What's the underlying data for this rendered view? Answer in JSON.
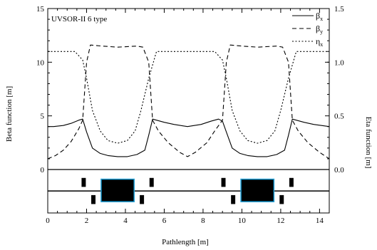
{
  "chart_data": {
    "type": "line",
    "title": "UVSOR-II 6 type",
    "xlabel": "Pathlength [m]",
    "ylabel": "Beta function [m]",
    "y2label": "Eta function [m]",
    "xlim": [
      0,
      14.5
    ],
    "ylim": [
      0,
      15
    ],
    "y2lim": [
      0,
      1.5
    ],
    "xticks": [
      "0",
      "2",
      "4",
      "6",
      "8",
      "10",
      "12",
      "14"
    ],
    "yticks": [
      "0",
      "5",
      "10",
      "15"
    ],
    "y2ticks": [
      "0.0",
      "0.5",
      "1.0",
      "1.5"
    ],
    "legend_position": "top-right",
    "legend": [
      {
        "base": "β",
        "sub": "x",
        "dash": "solid"
      },
      {
        "base": "β",
        "sub": "y",
        "dash": "dashed"
      },
      {
        "base": "η",
        "sub": "x",
        "dash": "dotted"
      }
    ],
    "series": [
      {
        "key": "beta_x",
        "axis": "left",
        "x": [
          0,
          0.3,
          0.8,
          1.2,
          1.6,
          1.8,
          2.0,
          2.3,
          2.7,
          3.1,
          3.6,
          4.1,
          4.6,
          5.0,
          5.2,
          5.4,
          6.0,
          6.5,
          7.2,
          7.9,
          8.4,
          8.8,
          9.0,
          9.2,
          9.5,
          9.9,
          10.3,
          10.8,
          11.3,
          11.8,
          12.2,
          12.4,
          12.6,
          13.2,
          13.7,
          14.5
        ],
        "y": [
          4.0,
          4.0,
          4.1,
          4.3,
          4.6,
          4.7,
          3.5,
          2.0,
          1.5,
          1.3,
          1.2,
          1.2,
          1.4,
          1.8,
          3.2,
          4.7,
          4.4,
          4.2,
          4.0,
          4.2,
          4.5,
          4.7,
          4.5,
          3.5,
          2.0,
          1.5,
          1.3,
          1.2,
          1.2,
          1.4,
          1.8,
          3.2,
          4.7,
          4.4,
          4.2,
          4.0
        ]
      },
      {
        "key": "beta_y",
        "axis": "left",
        "x": [
          0,
          0.4,
          0.8,
          1.2,
          1.6,
          1.8,
          2.0,
          2.2,
          2.8,
          3.6,
          4.6,
          4.9,
          5.2,
          5.4,
          5.7,
          6.2,
          6.8,
          7.2,
          7.6,
          8.2,
          8.6,
          9.0,
          9.2,
          9.4,
          10.0,
          10.8,
          11.8,
          12.1,
          12.4,
          12.6,
          12.9,
          13.4,
          14.0,
          14.5
        ],
        "y": [
          1.0,
          1.3,
          1.8,
          2.6,
          3.8,
          4.6,
          10.0,
          11.6,
          11.5,
          11.4,
          11.5,
          11.4,
          10.0,
          4.6,
          3.6,
          2.5,
          1.6,
          1.2,
          1.6,
          2.5,
          3.6,
          4.6,
          10.0,
          11.6,
          11.5,
          11.4,
          11.5,
          11.4,
          10.0,
          4.6,
          3.6,
          2.5,
          1.6,
          1.0
        ]
      },
      {
        "key": "eta_x",
        "axis": "right",
        "x": [
          0,
          1.4,
          1.8,
          2.0,
          2.3,
          2.7,
          3.1,
          3.6,
          4.1,
          4.5,
          4.8,
          5.2,
          5.6,
          8.6,
          9.0,
          9.2,
          9.5,
          9.9,
          10.3,
          10.8,
          11.3,
          11.7,
          12.0,
          12.4,
          12.8,
          14.5
        ],
        "y": [
          1.1,
          1.1,
          1.02,
          0.85,
          0.55,
          0.36,
          0.27,
          0.245,
          0.27,
          0.36,
          0.55,
          0.85,
          1.1,
          1.1,
          1.02,
          0.85,
          0.55,
          0.36,
          0.27,
          0.245,
          0.27,
          0.36,
          0.55,
          0.85,
          1.1,
          1.1
        ]
      }
    ],
    "lattice": {
      "baseline_y": -2.0,
      "magnets": [
        {
          "kind": "quad",
          "x0": 1.75,
          "x1": 1.95,
          "y0": -1.6,
          "y1": -0.8
        },
        {
          "kind": "quad",
          "x0": 2.25,
          "x1": 2.45,
          "y0": -3.2,
          "y1": -2.4
        },
        {
          "kind": "bend",
          "x0": 2.75,
          "x1": 4.45,
          "y0": -3.0,
          "y1": -0.9
        },
        {
          "kind": "quad",
          "x0": 4.75,
          "x1": 4.95,
          "y0": -3.2,
          "y1": -2.4
        },
        {
          "kind": "quad",
          "x0": 5.25,
          "x1": 5.45,
          "y0": -1.6,
          "y1": -0.8
        },
        {
          "kind": "quad",
          "x0": 8.95,
          "x1": 9.15,
          "y0": -1.6,
          "y1": -0.8
        },
        {
          "kind": "quad",
          "x0": 9.45,
          "x1": 9.65,
          "y0": -3.2,
          "y1": -2.4
        },
        {
          "kind": "bend",
          "x0": 9.95,
          "x1": 11.65,
          "y0": -3.0,
          "y1": -0.9
        },
        {
          "kind": "quad",
          "x0": 11.95,
          "x1": 12.15,
          "y0": -3.2,
          "y1": -2.4
        },
        {
          "kind": "quad",
          "x0": 12.45,
          "x1": 12.65,
          "y0": -1.6,
          "y1": -0.8
        }
      ]
    }
  }
}
